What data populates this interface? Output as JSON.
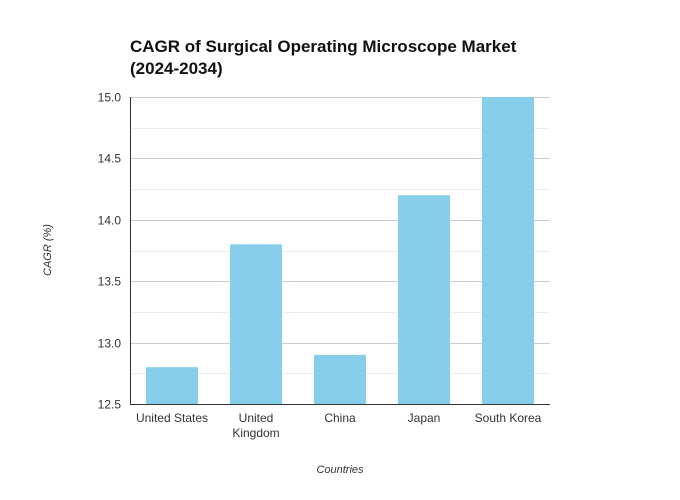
{
  "chart_data": {
    "type": "bar",
    "title_lines": [
      "CAGR of Surgical Operating Microscope Market",
      "(2024-2034)"
    ],
    "xlabel": "Countries",
    "ylabel": "CAGR (%)",
    "categories": [
      [
        "United States"
      ],
      [
        "United",
        "Kingdom"
      ],
      [
        "China"
      ],
      [
        "Japan"
      ],
      [
        "South Korea"
      ]
    ],
    "values": [
      12.8,
      13.8,
      12.9,
      14.2,
      15.0
    ],
    "ylim": [
      12.5,
      15.0
    ],
    "yticks": [
      "12.5",
      "13.0",
      "13.5",
      "14.0",
      "14.5",
      "15.0"
    ],
    "grid": true,
    "bar_color": "#87CEEB"
  }
}
